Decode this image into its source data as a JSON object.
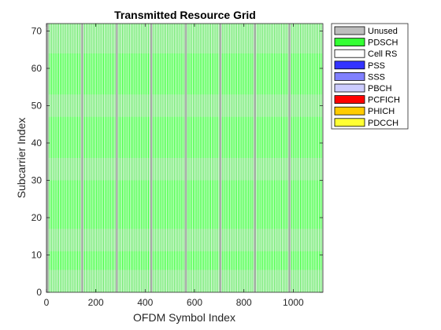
{
  "chart_data": {
    "type": "heatmap",
    "title": "Transmitted Resource Grid",
    "xlabel": "OFDM Symbol Index",
    "ylabel": "Subcarrier Index",
    "xlim": [
      0,
      1120
    ],
    "ylim": [
      0,
      72
    ],
    "xticks": [
      0,
      200,
      400,
      600,
      800,
      1000
    ],
    "yticks": [
      0,
      10,
      20,
      30,
      40,
      50,
      60,
      70
    ],
    "grid": false,
    "legend_position": "outside-top-right",
    "legend": [
      {
        "label": "Unused",
        "color": "#bdbdbd"
      },
      {
        "label": "PDSCH",
        "color": "#33ff33"
      },
      {
        "label": "Cell RS",
        "color": "#ffffff"
      },
      {
        "label": "PSS",
        "color": "#3333ff"
      },
      {
        "label": "SSS",
        "color": "#8080ff"
      },
      {
        "label": "PBCH",
        "color": "#ccccff"
      },
      {
        "label": "PCFICH",
        "color": "#ff0000"
      },
      {
        "label": "PHICH",
        "color": "#ffcc00"
      },
      {
        "label": "PDCCH",
        "color": "#ffff33"
      }
    ],
    "grid_structure": {
      "symbols_per_subframe": 14,
      "unused_symbol_period": 140,
      "unused_bands_subcarriers": [
        [
          0,
          6
        ],
        [
          11,
          17
        ],
        [
          30,
          36
        ],
        [
          47,
          53
        ],
        [
          64,
          72
        ]
      ],
      "pattern_description_colors": [
        "#33ff33",
        "#bdbdbd",
        "#ffffff"
      ]
    }
  }
}
